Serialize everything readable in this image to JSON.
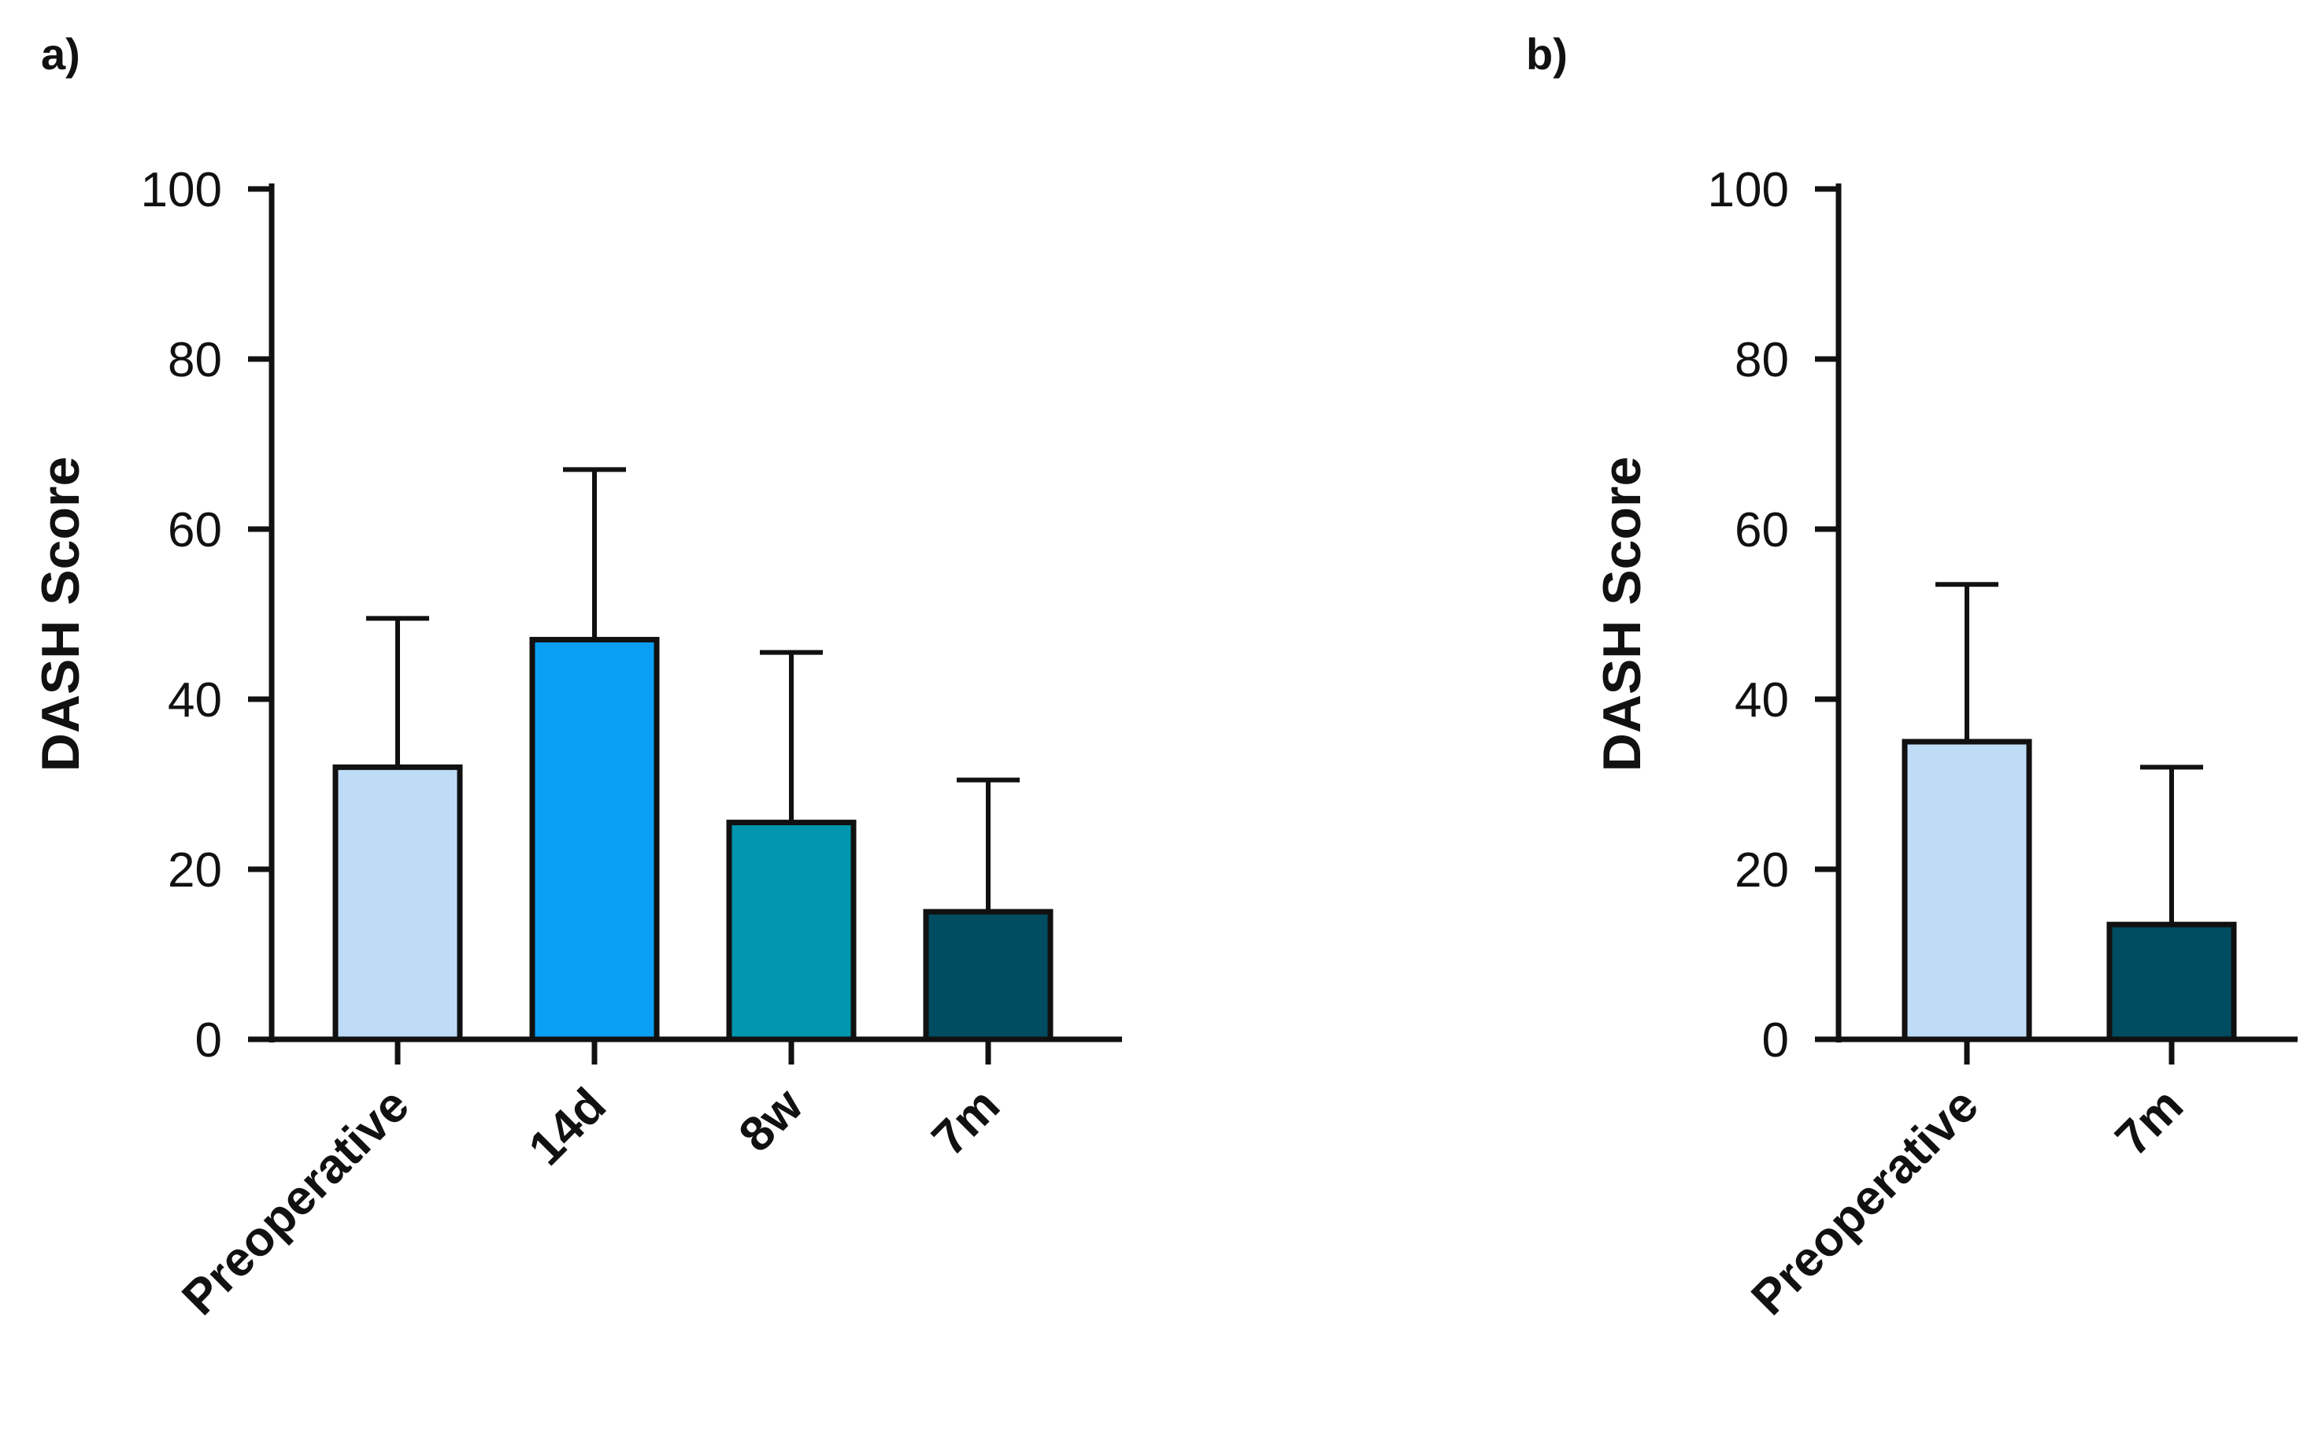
{
  "chart_data": [
    {
      "type": "bar",
      "panel_label": "a)",
      "categories": [
        "Preoperative",
        "14d",
        "8w",
        "7m"
      ],
      "values": [
        32,
        47,
        25.5,
        15
      ],
      "error_upper": [
        49.5,
        67,
        45.5,
        30.5
      ],
      "bar_colors": [
        "#bfdcf7",
        "#0aa0f5",
        "#0096ad",
        "#004c60"
      ],
      "ylabel": "DASH Score",
      "xlabel": "",
      "ylim": [
        0,
        100
      ],
      "yticks": [
        "0",
        "20",
        "40",
        "60",
        "80",
        "100"
      ],
      "grid": false
    },
    {
      "type": "bar",
      "panel_label": "b)",
      "categories": [
        "Preoperative",
        "7m"
      ],
      "values": [
        35,
        13.5
      ],
      "error_upper": [
        53.5,
        32
      ],
      "bar_colors": [
        "#bfdcf7",
        "#004c60"
      ],
      "ylabel": "DASH Score",
      "xlabel": "",
      "ylim": [
        0,
        100
      ],
      "yticks": [
        "0",
        "20",
        "40",
        "60",
        "80",
        "100"
      ],
      "grid": false
    }
  ]
}
